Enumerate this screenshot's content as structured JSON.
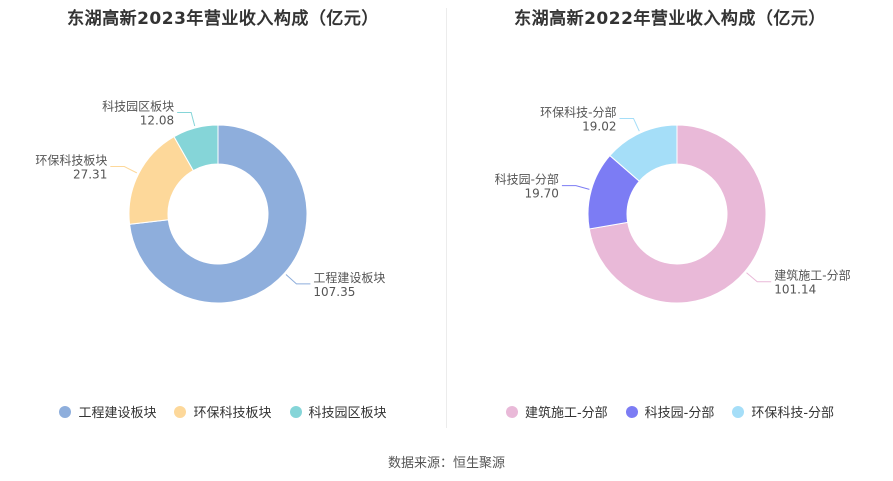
{
  "chart_data": [
    {
      "type": "pie",
      "title": "东湖高新2023年营业收入构成（亿元）",
      "categories": [
        "工程建设板块",
        "环保科技板块",
        "科技园区板块"
      ],
      "values": [
        107.35,
        27.31,
        12.08
      ],
      "value_labels": [
        "107.35",
        "27.31",
        "12.08"
      ],
      "colors": [
        "#8eaedc",
        "#fdd89a",
        "#85d5d8"
      ],
      "legend": "bottom"
    },
    {
      "type": "pie",
      "title": "东湖高新2022年营业收入构成（亿元）",
      "categories": [
        "建筑施工-分部",
        "科技园-分部",
        "环保科技-分部"
      ],
      "values": [
        101.14,
        19.7,
        19.02
      ],
      "value_labels": [
        "101.14",
        "19.70",
        "19.02"
      ],
      "colors": [
        "#e9b9d8",
        "#7c7cf4",
        "#a5def8"
      ],
      "legend": "bottom"
    }
  ],
  "source": "数据来源：恒生聚源"
}
